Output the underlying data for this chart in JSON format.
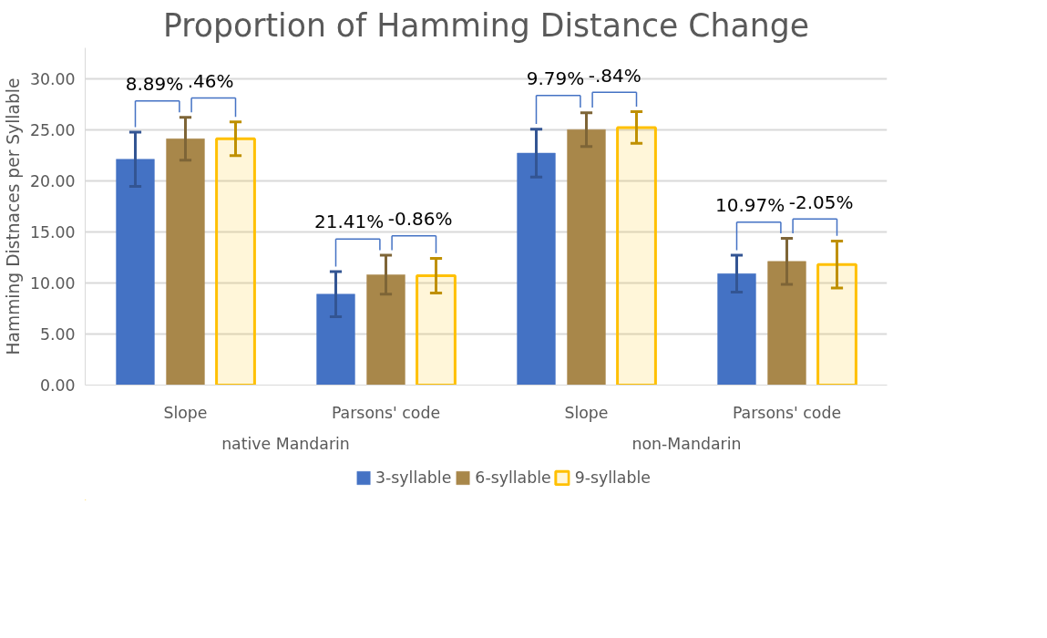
{
  "chart_data": {
    "type": "bar",
    "title": "Proportion of Hamming Distance Change",
    "ylabel": "Hamming Distnaces per Syllable",
    "categories": [
      "Slope",
      "Parsons' code",
      "Slope",
      "Parsons' code"
    ],
    "series": [
      {
        "name": "3-syllable",
        "color": "#4472c4",
        "values": [
          22.1,
          8.9,
          22.7,
          10.9
        ],
        "errors": [
          2.65,
          2.2,
          2.35,
          1.8
        ]
      },
      {
        "name": "6-syllable",
        "color": "#a8874a",
        "values": [
          24.1,
          10.8,
          25.0,
          12.1
        ],
        "errors": [
          2.1,
          1.9,
          1.65,
          2.25
        ]
      },
      {
        "name": "9-syllable",
        "color": "#ffc000",
        "values": [
          24.1,
          10.7,
          25.2,
          11.8
        ],
        "errors": [
          1.65,
          1.7,
          1.55,
          2.3
        ]
      }
    ],
    "annotations": [
      "native Mandarin",
      "non-Mandarin",
      "8.89%",
      ".46%",
      "21.41%",
      "-0.86%",
      "9.79%",
      "-.84%",
      "10.97%",
      "-2.05%"
    ],
    "ylim": [
      0,
      33
    ],
    "yticks": [
      {
        "value": 0,
        "label": "0.00"
      },
      {
        "value": 5,
        "label": "5.00"
      },
      {
        "value": 10,
        "label": "10.00"
      },
      {
        "value": 15,
        "label": "15.00"
      },
      {
        "value": 20,
        "label": "20.00"
      },
      {
        "value": 25,
        "label": "25.00"
      },
      {
        "value": 30,
        "label": "30.00"
      }
    ],
    "grid": "y",
    "legend": "bottom"
  }
}
